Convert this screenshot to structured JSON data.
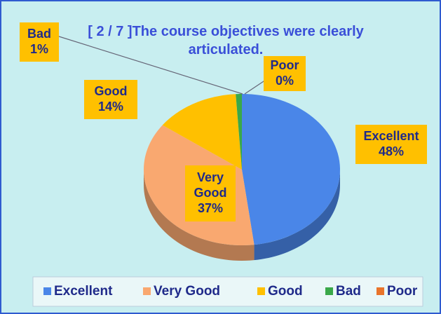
{
  "chart_data": {
    "type": "pie",
    "title": "[ 2 / 7 ]The course objectives were clearly articulated.",
    "categories": [
      "Excellent",
      "Very Good",
      "Good",
      "Bad",
      "Poor"
    ],
    "values": [
      48,
      37,
      14,
      1,
      0
    ],
    "value_labels": [
      "48%",
      "37%",
      "14%",
      "1%",
      "0%"
    ],
    "colors": [
      "#4a86e8",
      "#f9a870",
      "#ffc000",
      "#3aa84a",
      "#e9742b"
    ],
    "legend": "bottom"
  }
}
